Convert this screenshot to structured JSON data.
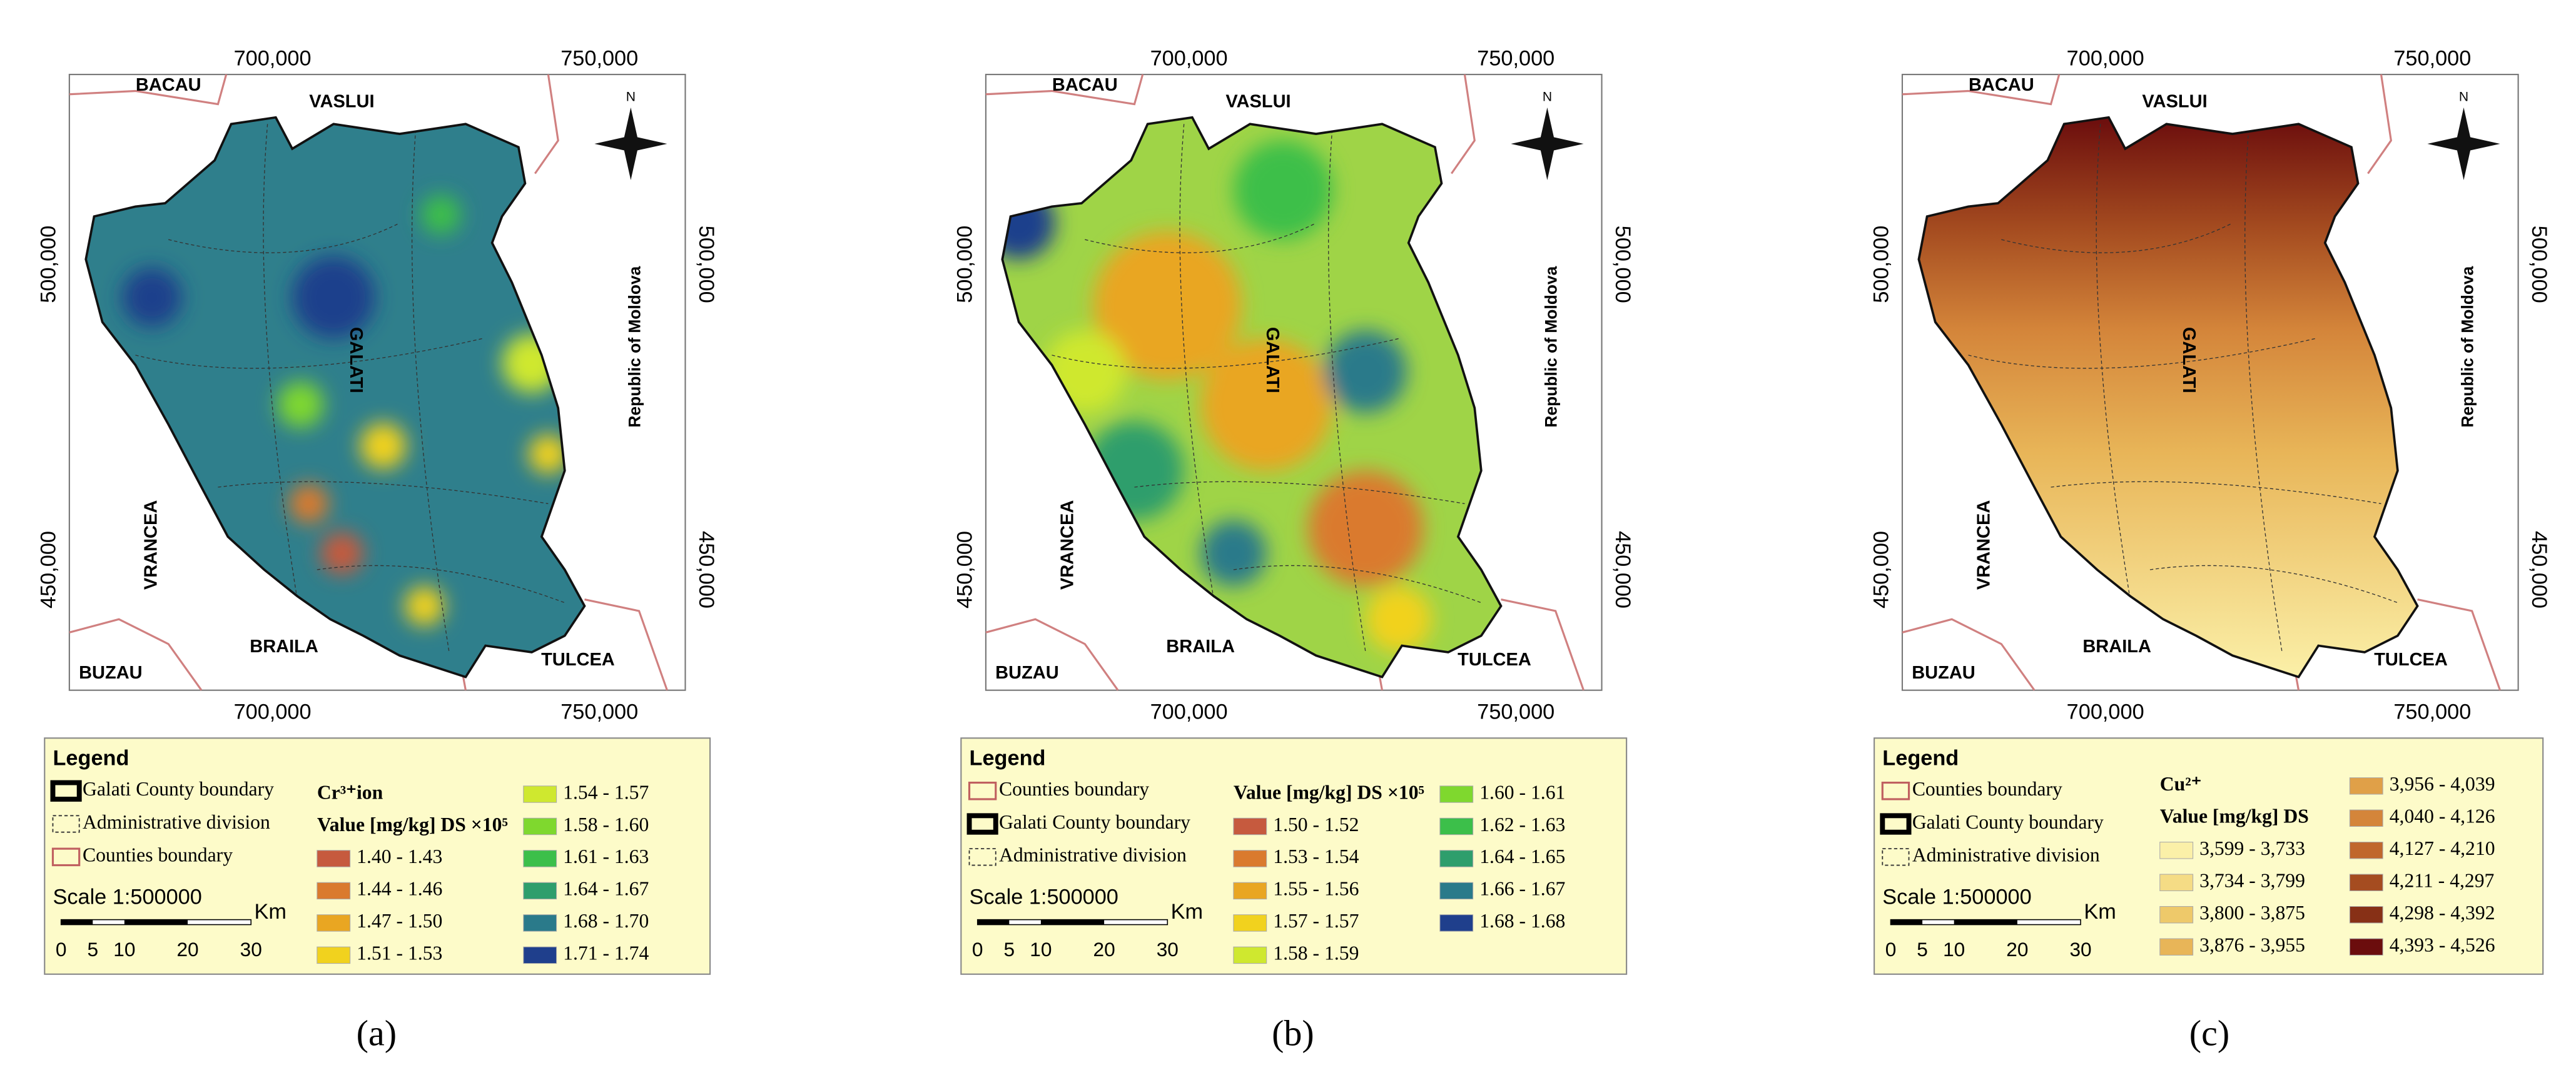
{
  "panels": [
    {
      "coords": {
        "top": [
          "700,000",
          "750,000"
        ],
        "bottom": [
          "700,000",
          "750,000"
        ],
        "left": [
          "500,000",
          "450,000"
        ],
        "right": [
          "500,000",
          "450,000"
        ]
      },
      "places": [
        "BACAU",
        "VASLUI",
        "GALATI",
        "VRANCEA",
        "BRAILA",
        "BUZAU",
        "TULCEA",
        "Republic of Moldova"
      ],
      "north": "N",
      "legend": {
        "title": "Legend",
        "boundaries": [
          "Galati County boundary",
          "Administrative division",
          "Counties boundary"
        ],
        "scale_text": "Scale 1:500000",
        "scale_unit": "Km",
        "scale_ticks": [
          0,
          5,
          10,
          20,
          30
        ],
        "headers": [
          "Cr³⁺ion",
          "Value [mg/kg] DS ×10⁵"
        ],
        "classes": [
          {
            "label": "1.40 - 1.43",
            "color": "#c65a3e"
          },
          {
            "label": "1.44 - 1.46",
            "color": "#da7a2e"
          },
          {
            "label": "1.47 - 1.50",
            "color": "#e9a622"
          },
          {
            "label": "1.51 - 1.53",
            "color": "#f1d21e"
          },
          {
            "label": "1.54 - 1.57",
            "color": "#cfe82f"
          },
          {
            "label": "1.58 - 1.60",
            "color": "#7fd82e"
          },
          {
            "label": "1.61 - 1.63",
            "color": "#3cbf4a"
          },
          {
            "label": "1.64 - 1.67",
            "color": "#2e9e6c"
          },
          {
            "label": "1.68 - 1.70",
            "color": "#2a7a8a"
          },
          {
            "label": "1.71 - 1.74",
            "color": "#1f3f8c"
          }
        ]
      },
      "caption": "(a)"
    },
    {
      "coords": {
        "top": [
          "700,000",
          "750,000"
        ],
        "bottom": [
          "700,000",
          "750,000"
        ],
        "left": [
          "500,000",
          "450,000"
        ],
        "right": [
          "500,000",
          "450,000"
        ]
      },
      "places": [
        "BACAU",
        "VASLUI",
        "GALATI",
        "VRANCEA",
        "BRAILA",
        "BUZAU",
        "TULCEA",
        "Republic of Moldova"
      ],
      "north": "N",
      "legend": {
        "title": "Legend",
        "boundaries": [
          "Counties boundary",
          "Galati County boundary",
          "Administrative division"
        ],
        "scale_text": "Scale 1:500000",
        "scale_unit": "Km",
        "scale_ticks": [
          0,
          5,
          10,
          20,
          30
        ],
        "headers": [
          "Value [mg/kg] DS ×10⁵"
        ],
        "classes": [
          {
            "label": "1.50 - 1.52",
            "color": "#c65a3e"
          },
          {
            "label": "1.53 - 1.54",
            "color": "#da7a2e"
          },
          {
            "label": "1.55 - 1.56",
            "color": "#e9a622"
          },
          {
            "label": "1.57 - 1.57",
            "color": "#f1d21e"
          },
          {
            "label": "1.58 - 1.59",
            "color": "#cfe82f"
          },
          {
            "label": "1.60 - 1.61",
            "color": "#7fd82e"
          },
          {
            "label": "1.62 - 1.63",
            "color": "#3cbf4a"
          },
          {
            "label": "1.64 - 1.65",
            "color": "#2e9e6c"
          },
          {
            "label": "1.66 - 1.67",
            "color": "#2a7a8a"
          },
          {
            "label": "1.68 - 1.68",
            "color": "#1f3f8c"
          }
        ]
      },
      "caption": "(b)"
    },
    {
      "coords": {
        "top": [
          "700,000",
          "750,000"
        ],
        "bottom": [
          "700,000",
          "750,000"
        ],
        "left": [
          "500,000",
          "450,000"
        ],
        "right": [
          "500,000",
          "450,000"
        ]
      },
      "places": [
        "BACAU",
        "VASLUI",
        "GALATI",
        "VRANCEA",
        "BRAILA",
        "BUZAU",
        "TULCEA",
        "Republic of Moldova"
      ],
      "north": "N",
      "legend": {
        "title": "Legend",
        "boundaries": [
          "Counties boundary",
          "Galati County boundary",
          "Administrative division"
        ],
        "scale_text": "Scale 1:500000",
        "scale_unit": "Km",
        "scale_ticks": [
          0,
          5,
          10,
          20,
          30
        ],
        "headers": [
          "Cu²⁺",
          "Value [mg/kg] DS"
        ],
        "classes": [
          {
            "label": "3,599 - 3,733",
            "color": "#fbf0a8"
          },
          {
            "label": "3,734 - 3,799",
            "color": "#f5dc85"
          },
          {
            "label": "3,800 - 3,875",
            "color": "#eec96a"
          },
          {
            "label": "3,876 - 3,955",
            "color": "#e8b558"
          },
          {
            "label": "3,956 - 4,039",
            "color": "#e0a048"
          },
          {
            "label": "4,040 - 4,126",
            "color": "#d4853a"
          },
          {
            "label": "4,127 - 4,210",
            "color": "#c0672c"
          },
          {
            "label": "4,211 - 4,297",
            "color": "#a54c20"
          },
          {
            "label": "4,298 - 4,392",
            "color": "#873016"
          },
          {
            "label": "4,393 - 4,526",
            "color": "#6b0d0d"
          }
        ]
      },
      "caption": "(c)"
    }
  ]
}
